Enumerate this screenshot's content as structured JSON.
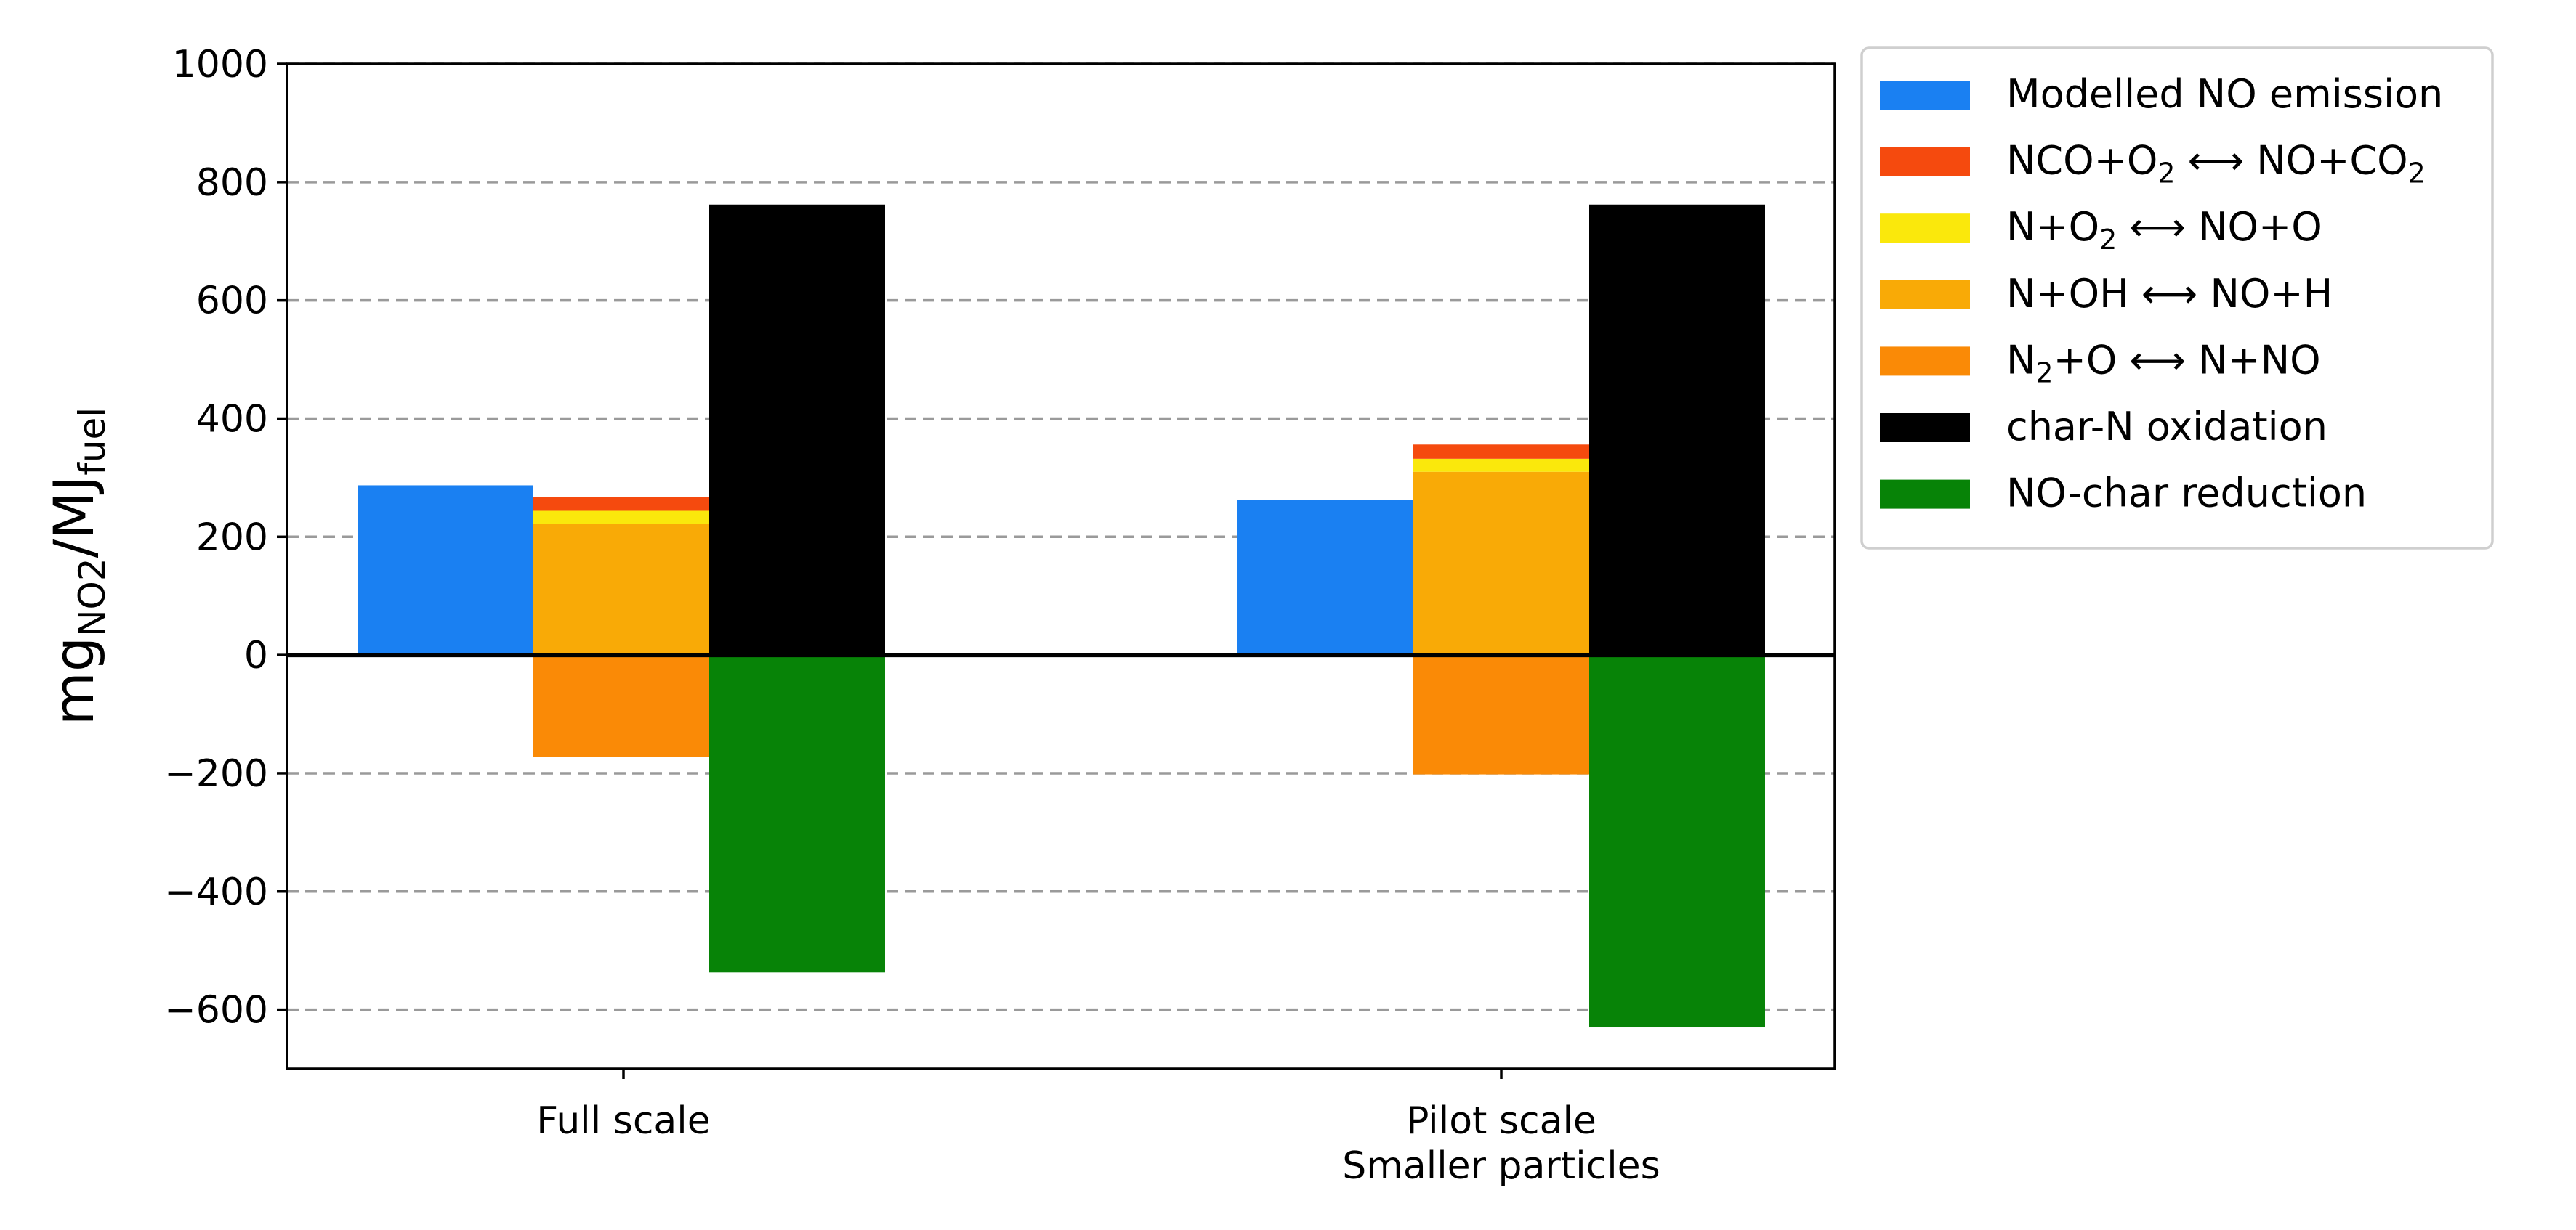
{
  "chart_data": {
    "type": "bar",
    "layout": "grouped-stacked",
    "categories": [
      "Full scale",
      "Pilot scale\nSmaller particles"
    ],
    "ylabel": {
      "main": "mg",
      "sub1": "NO2",
      "mid": "/MJ",
      "sub2": "fuel"
    },
    "ylim": [
      -700,
      1000
    ],
    "yticks": [
      -600,
      -400,
      -200,
      0,
      200,
      400,
      600,
      800,
      1000
    ],
    "ytick_labels": [
      "−600",
      "−400",
      "−200",
      "0",
      "200",
      "400",
      "600",
      "800",
      "1000"
    ],
    "grid": "horizontal-dashed",
    "legend_position": "outside-right-top",
    "groups": [
      {
        "category": "Full scale",
        "bars": [
          {
            "segments": [
              {
                "series": "Modelled NO emission",
                "from": 0,
                "to": 287
              }
            ]
          },
          {
            "segments": [
              {
                "series": "N+OH ↔ NO+H",
                "from": 0,
                "to": 222
              },
              {
                "series": "N+O2 ↔ NO+O",
                "from": 222,
                "to": 244
              },
              {
                "series": "NCO+O2 ↔ NO+CO2",
                "from": 244,
                "to": 267
              },
              {
                "series": "N2+O ↔ N+NO",
                "from": 0,
                "to": -172
              }
            ]
          },
          {
            "segments": [
              {
                "series": "char-N oxidation",
                "from": 0,
                "to": 762
              },
              {
                "series": "NO-char reduction",
                "from": 0,
                "to": -537
              }
            ]
          }
        ]
      },
      {
        "category": "Pilot scale Smaller particles",
        "bars": [
          {
            "segments": [
              {
                "series": "Modelled NO emission",
                "from": 0,
                "to": 262
              }
            ]
          },
          {
            "segments": [
              {
                "series": "N+OH ↔ NO+H",
                "from": 0,
                "to": 310
              },
              {
                "series": "N+O2 ↔ NO+O",
                "from": 310,
                "to": 332
              },
              {
                "series": "NCO+O2 ↔ NO+CO2",
                "from": 332,
                "to": 356
              },
              {
                "series": "N2+O ↔ N+NO",
                "from": 0,
                "to": -202
              }
            ]
          },
          {
            "segments": [
              {
                "series": "char-N oxidation",
                "from": 0,
                "to": 762
              },
              {
                "series": "NO-char reduction",
                "from": 0,
                "to": -630
              }
            ]
          }
        ]
      }
    ],
    "series": [
      {
        "name": "Modelled NO emission",
        "color": "#1A80F2",
        "legend": [
          {
            "t": "Modelled NO emission"
          }
        ]
      },
      {
        "name": "NCO+O2 ↔ NO+CO2",
        "color": "#F54A0E",
        "legend": [
          {
            "t": "NCO+O"
          },
          {
            "t": "2",
            "sub": true
          },
          {
            "t": " ⟷ NO+CO"
          },
          {
            "t": "2",
            "sub": true
          }
        ]
      },
      {
        "name": "N+O2 ↔ NO+O",
        "color": "#FAE80C",
        "legend": [
          {
            "t": "N+O"
          },
          {
            "t": "2",
            "sub": true
          },
          {
            "t": " ⟷ NO+O"
          }
        ]
      },
      {
        "name": "N+OH ↔ NO+H",
        "color": "#F9AA06",
        "legend": [
          {
            "t": "N+OH ⟷ NO+H"
          }
        ]
      },
      {
        "name": "N2+O ↔ N+NO",
        "color": "#FA8A06",
        "legend": [
          {
            "t": "N"
          },
          {
            "t": "2",
            "sub": true
          },
          {
            "t": "+O ⟷ N+NO"
          }
        ]
      },
      {
        "name": "char-N oxidation",
        "color": "#000000",
        "legend": [
          {
            "t": "char-N oxidation"
          }
        ]
      },
      {
        "name": "NO-char reduction",
        "color": "#078307",
        "legend": [
          {
            "t": "NO-char reduction"
          }
        ]
      }
    ]
  }
}
